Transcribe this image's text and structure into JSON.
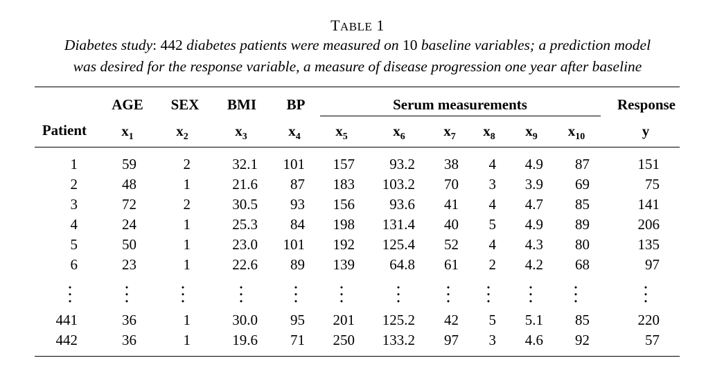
{
  "table": {
    "label_first": "T",
    "label_rest": "ABLE",
    "label_number": "1",
    "caption_line1_a": "Diabetes study",
    "caption_line1_b": ": 442 ",
    "caption_line1_c": "diabetes patients were measured on",
    "caption_line1_d": " 10 ",
    "caption_line1_e": "baseline variables; a prediction model",
    "caption_line2": "was desired for the response variable, a measure of disease progression one year after baseline",
    "group_headers": {
      "age": "AGE",
      "sex": "SEX",
      "bmi": "BMI",
      "bp": "BP",
      "serum": "Serum measurements",
      "response": "Response"
    },
    "column_headers": {
      "patient": "Patient",
      "x1": "x",
      "x1_sub": "1",
      "x2": "x",
      "x2_sub": "2",
      "x3": "x",
      "x3_sub": "3",
      "x4": "x",
      "x4_sub": "4",
      "x5": "x",
      "x5_sub": "5",
      "x6": "x",
      "x6_sub": "6",
      "x7": "x",
      "x7_sub": "7",
      "x8": "x",
      "x8_sub": "8",
      "x9": "x",
      "x9_sub": "9",
      "x10": "x",
      "x10_sub": "10",
      "y": "y"
    },
    "rows": [
      [
        "1",
        "59",
        "2",
        "32.1",
        "101",
        "157",
        "93.2",
        "38",
        "4",
        "4.9",
        "87",
        "151"
      ],
      [
        "2",
        "48",
        "1",
        "21.6",
        "87",
        "183",
        "103.2",
        "70",
        "3",
        "3.9",
        "69",
        "75"
      ],
      [
        "3",
        "72",
        "2",
        "30.5",
        "93",
        "156",
        "93.6",
        "41",
        "4",
        "4.7",
        "85",
        "141"
      ],
      [
        "4",
        "24",
        "1",
        "25.3",
        "84",
        "198",
        "131.4",
        "40",
        "5",
        "4.9",
        "89",
        "206"
      ],
      [
        "5",
        "50",
        "1",
        "23.0",
        "101",
        "192",
        "125.4",
        "52",
        "4",
        "4.3",
        "80",
        "135"
      ],
      [
        "6",
        "23",
        "1",
        "22.6",
        "89",
        "139",
        "64.8",
        "61",
        "2",
        "4.2",
        "68",
        "97"
      ]
    ],
    "tail_rows": [
      [
        "441",
        "36",
        "1",
        "30.0",
        "95",
        "201",
        "125.2",
        "42",
        "5",
        "5.1",
        "85",
        "220"
      ],
      [
        "442",
        "36",
        "1",
        "19.6",
        "71",
        "250",
        "133.2",
        "97",
        "3",
        "4.6",
        "92",
        "57"
      ]
    ]
  }
}
